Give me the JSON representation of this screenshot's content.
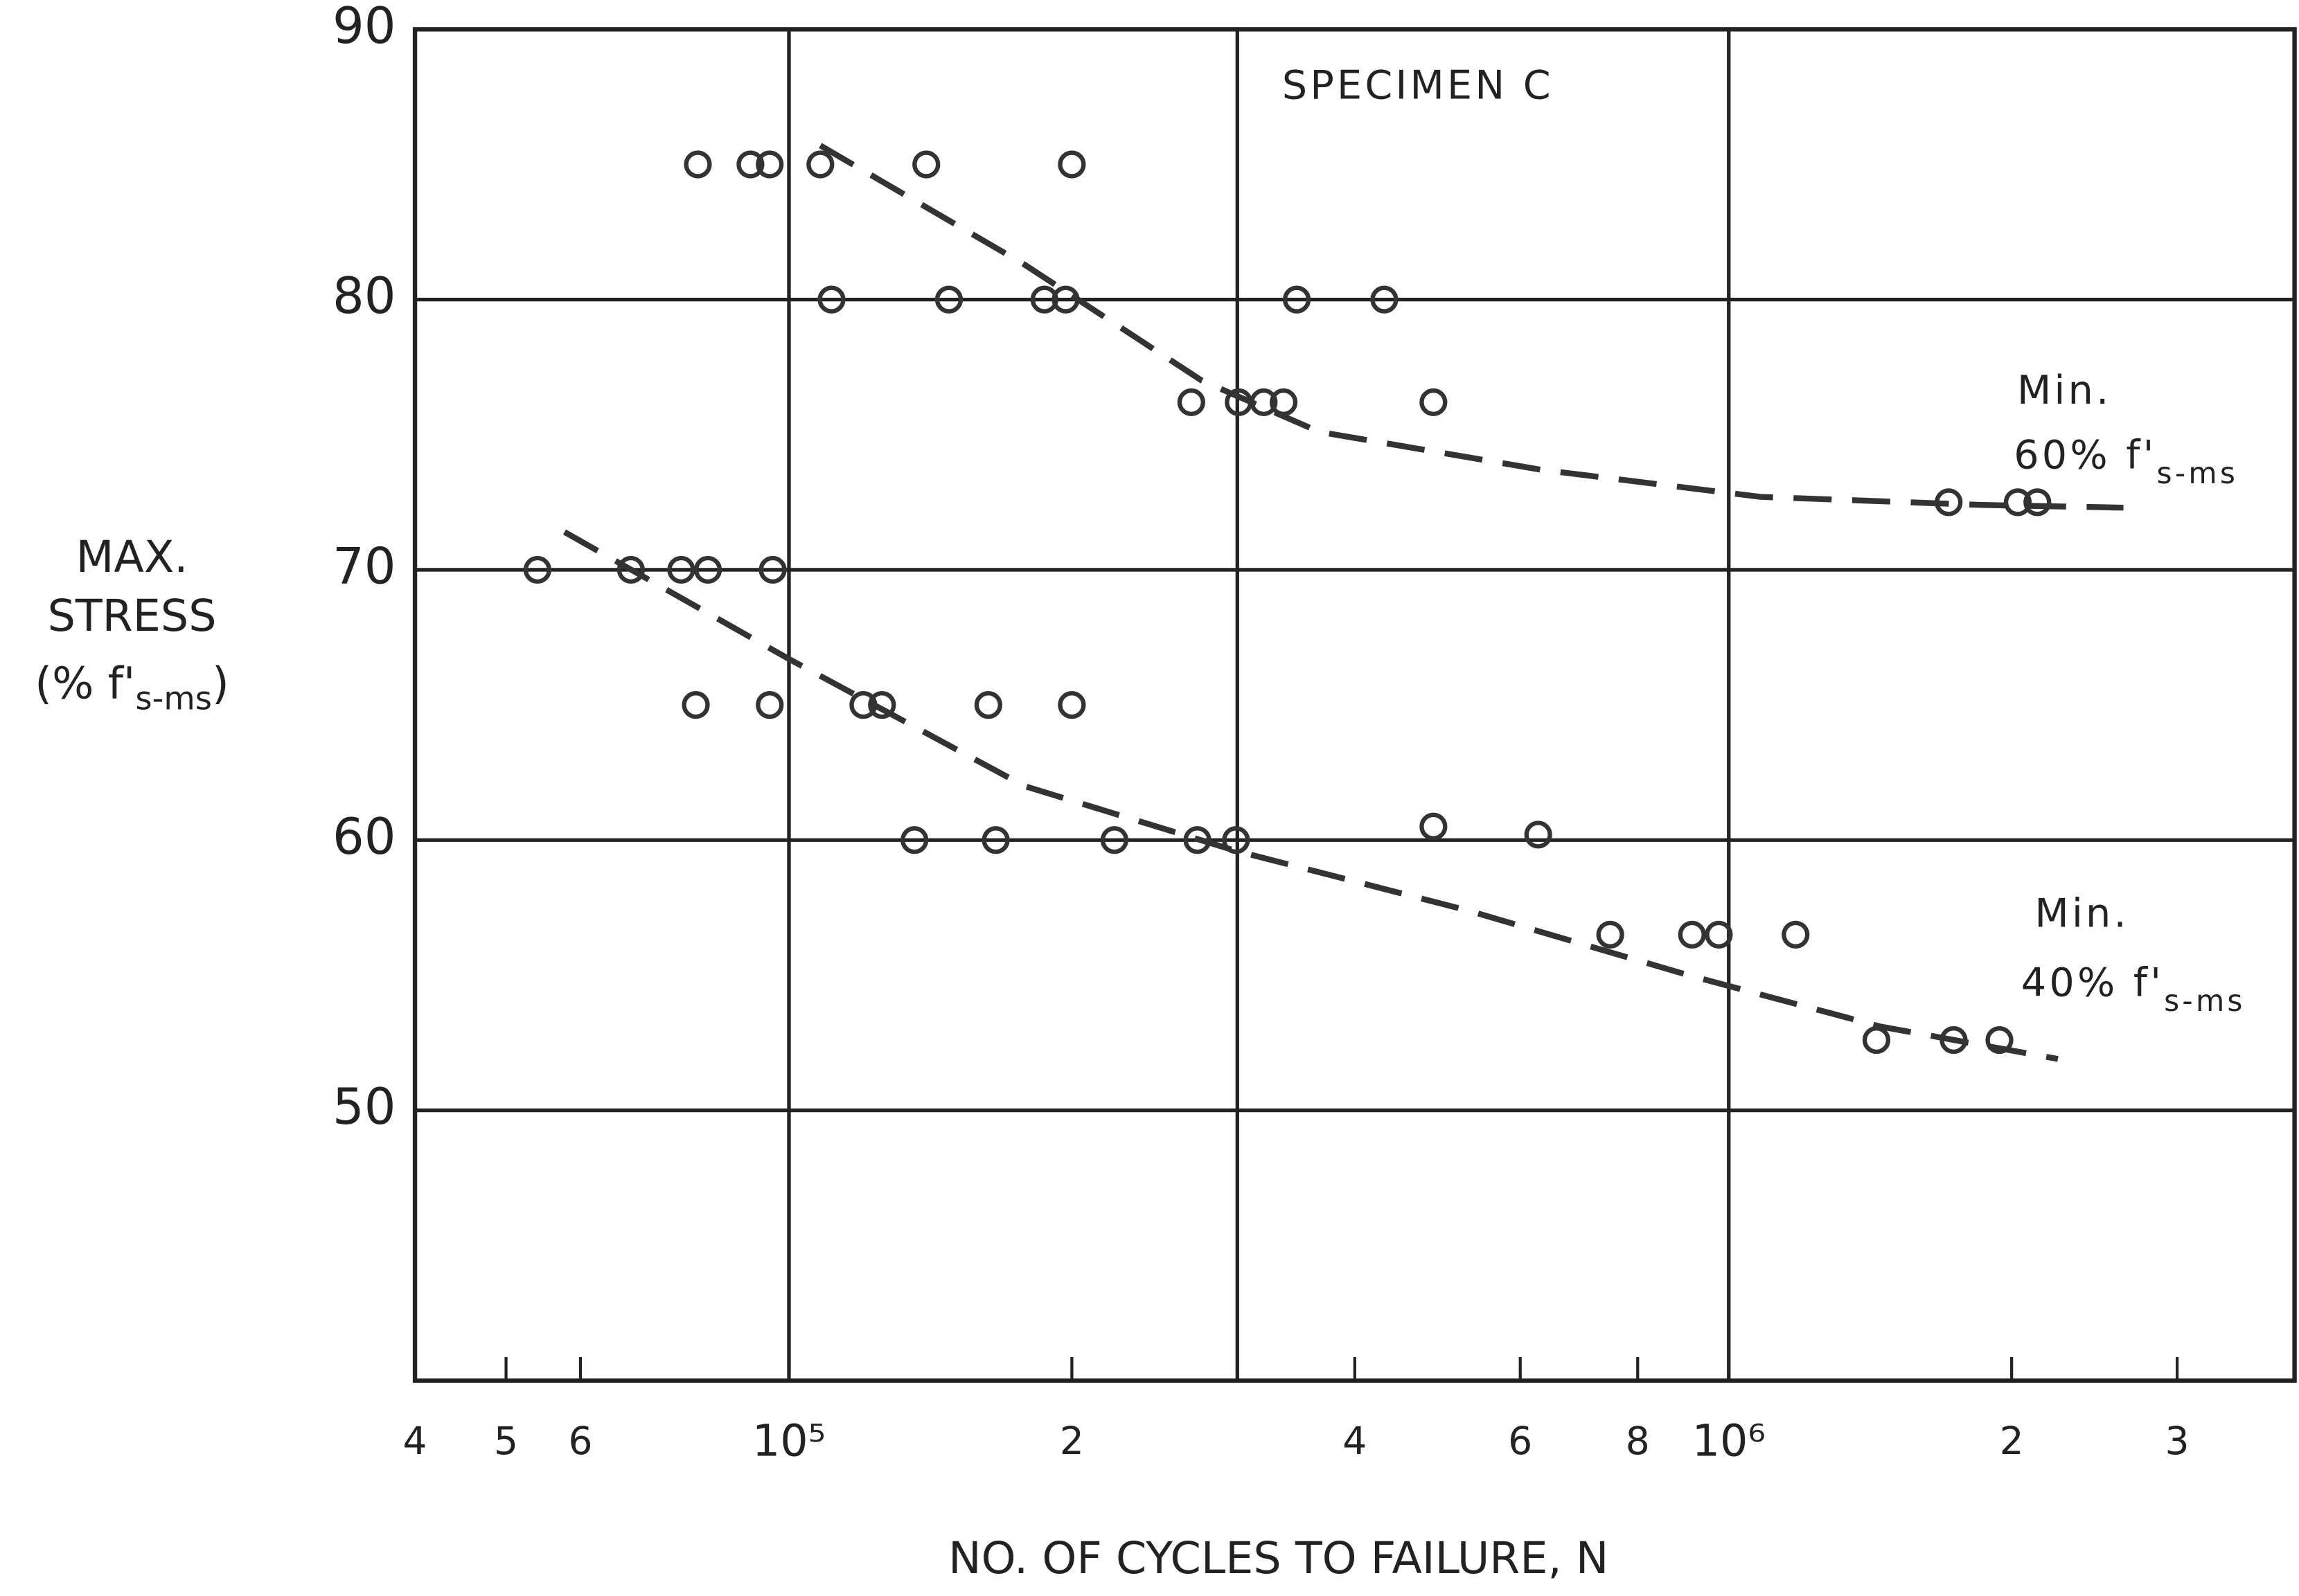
{
  "chart_data": {
    "type": "scatter",
    "title": "SPECIMEN C",
    "x_label": "NO. OF CYCLES TO FAILURE, N",
    "y_label": [
      "MAX.",
      "STRESS",
      "(% f'",
      "s-ms",
      ")"
    ],
    "xscale": "log",
    "xlim": [
      40000,
      4000000
    ],
    "ylim": [
      40,
      90
    ],
    "xticks": [
      {
        "value": 40000,
        "label": "4"
      },
      {
        "value": 50000,
        "label": "5"
      },
      {
        "value": 60000,
        "label": "6"
      },
      {
        "value": 100000,
        "label": "10⁵"
      },
      {
        "value": 200000,
        "label": "2"
      },
      {
        "value": 400000,
        "label": "4"
      },
      {
        "value": 600000,
        "label": "6"
      },
      {
        "value": 800000,
        "label": "8"
      },
      {
        "value": 1000000,
        "label": "10⁶"
      },
      {
        "value": 2000000,
        "label": "2"
      },
      {
        "value": 3000000,
        "label": "3"
      }
    ],
    "yticks": [
      50,
      60,
      70,
      80,
      90
    ],
    "xgrid": [
      100000,
      300000,
      1000000
    ],
    "grid": true,
    "color": "#333",
    "series": [
      {
        "x": [
          80000,
          91000,
          95400,
          108000,
          140000,
          200000,
          111000,
          148000,
          187000,
          197000,
          347000,
          430000,
          268000,
          301000,
          320000,
          336000,
          485000,
          1714000,
          2030000,
          2130000
        ],
        "values": [
          85,
          85,
          85,
          85,
          85,
          85,
          80,
          80,
          80,
          80,
          80,
          80,
          76.2,
          76.2,
          76.2,
          76.2,
          76.2,
          72.5,
          72.5,
          72.5
        ]
      },
      {
        "x": [
          54000,
          67900,
          76800,
          82000,
          96100,
          79600,
          95400,
          120000,
          125600,
          163000,
          200000,
          136000,
          166000,
          222000,
          272000,
          299000,
          485000,
          627000,
          748000,
          914000,
          976000,
          1178000,
          1436000,
          1735000,
          1941000
        ],
        "values": [
          70,
          70,
          70,
          70,
          70,
          65,
          65,
          65,
          65,
          65,
          65,
          60,
          60,
          60,
          60,
          60,
          60.5,
          60.2,
          56.5,
          56.5,
          56.5,
          56.5,
          52.6,
          52.6,
          52.6
        ]
      }
    ],
    "fits": [
      {
        "x": [
          108000,
          178000,
          275000,
          367000,
          632000,
          1080000,
          1860000,
          2630000
        ],
        "values": [
          85.7,
          81.3,
          77.0,
          75.1,
          73.7,
          72.7,
          72.4,
          72.3
        ]
      },
      {
        "x": [
          57700,
          100000,
          178000,
          299000,
          527000,
          906000,
          1450000,
          2240000
        ],
        "values": [
          71.4,
          66.7,
          62.0,
          59.6,
          57.4,
          55.0,
          53.1,
          51.9
        ]
      }
    ],
    "annotations": [
      {
        "line1": "Min.",
        "line2": "60% f'",
        "sub": "s-ms"
      },
      {
        "line1": "Min.",
        "line2": "40% f'",
        "sub": "s-ms"
      }
    ]
  }
}
